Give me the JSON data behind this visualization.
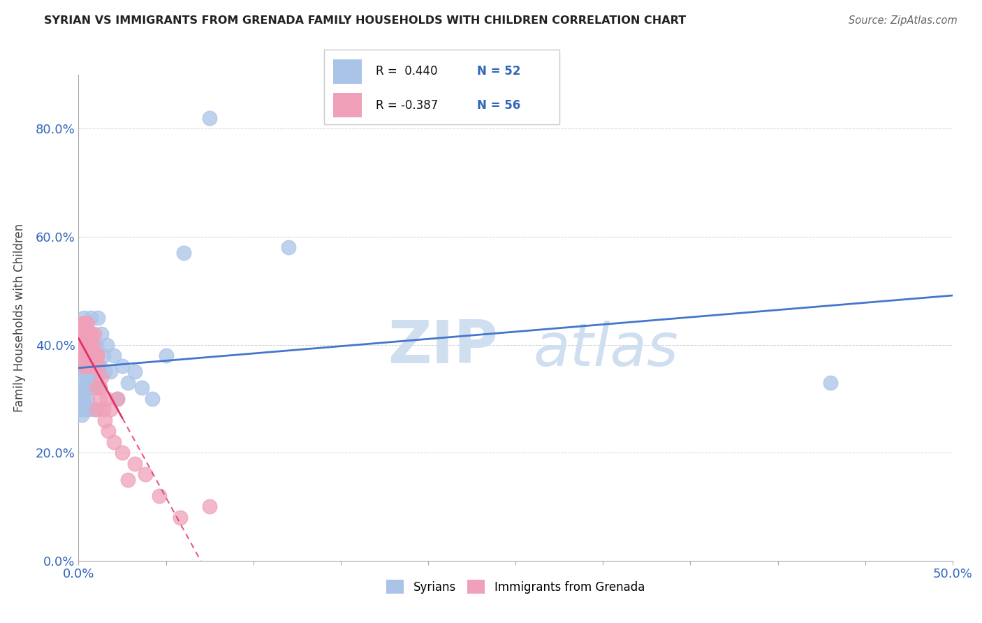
{
  "title": "SYRIAN VS IMMIGRANTS FROM GRENADA FAMILY HOUSEHOLDS WITH CHILDREN CORRELATION CHART",
  "source": "Source: ZipAtlas.com",
  "ylabel": "Family Households with Children",
  "xlim": [
    0.0,
    0.5
  ],
  "ylim": [
    0.0,
    0.9
  ],
  "blue_R": 0.44,
  "blue_N": 52,
  "pink_R": -0.387,
  "pink_N": 56,
  "blue_color": "#aac4e8",
  "pink_color": "#f0a0b8",
  "blue_line_color": "#4477cc",
  "pink_line_color": "#dd3366",
  "watermark_zip": "ZIP",
  "watermark_atlas": "atlas",
  "watermark_color": "#d0dff0",
  "legend_label_blue": "Syrians",
  "legend_label_pink": "Immigrants from Grenada",
  "blue_x": [
    0.001,
    0.001,
    0.002,
    0.002,
    0.002,
    0.003,
    0.003,
    0.003,
    0.003,
    0.003,
    0.004,
    0.004,
    0.004,
    0.004,
    0.004,
    0.005,
    0.005,
    0.005,
    0.005,
    0.006,
    0.006,
    0.006,
    0.006,
    0.007,
    0.007,
    0.007,
    0.008,
    0.008,
    0.009,
    0.009,
    0.01,
    0.01,
    0.011,
    0.012,
    0.012,
    0.013,
    0.014,
    0.015,
    0.016,
    0.018,
    0.02,
    0.022,
    0.025,
    0.028,
    0.032,
    0.036,
    0.042,
    0.05,
    0.06,
    0.075,
    0.12,
    0.43
  ],
  "blue_y": [
    0.28,
    0.3,
    0.32,
    0.27,
    0.35,
    0.3,
    0.28,
    0.33,
    0.31,
    0.45,
    0.29,
    0.35,
    0.32,
    0.28,
    0.35,
    0.38,
    0.3,
    0.35,
    0.34,
    0.42,
    0.36,
    0.28,
    0.33,
    0.45,
    0.38,
    0.4,
    0.35,
    0.32,
    0.38,
    0.28,
    0.4,
    0.34,
    0.45,
    0.36,
    0.32,
    0.42,
    0.38,
    0.35,
    0.4,
    0.35,
    0.38,
    0.3,
    0.36,
    0.33,
    0.35,
    0.32,
    0.3,
    0.38,
    0.57,
    0.82,
    0.58,
    0.33
  ],
  "pink_x": [
    0.001,
    0.001,
    0.001,
    0.002,
    0.002,
    0.002,
    0.002,
    0.003,
    0.003,
    0.003,
    0.003,
    0.003,
    0.004,
    0.004,
    0.004,
    0.004,
    0.004,
    0.005,
    0.005,
    0.005,
    0.005,
    0.005,
    0.006,
    0.006,
    0.006,
    0.007,
    0.007,
    0.007,
    0.008,
    0.008,
    0.008,
    0.009,
    0.009,
    0.009,
    0.01,
    0.01,
    0.01,
    0.011,
    0.011,
    0.012,
    0.012,
    0.013,
    0.014,
    0.015,
    0.016,
    0.017,
    0.018,
    0.02,
    0.022,
    0.025,
    0.028,
    0.032,
    0.038,
    0.046,
    0.058,
    0.075
  ],
  "pink_y": [
    0.4,
    0.38,
    0.42,
    0.44,
    0.4,
    0.38,
    0.42,
    0.44,
    0.4,
    0.38,
    0.42,
    0.36,
    0.4,
    0.44,
    0.38,
    0.42,
    0.36,
    0.4,
    0.38,
    0.42,
    0.44,
    0.36,
    0.38,
    0.42,
    0.4,
    0.38,
    0.42,
    0.4,
    0.36,
    0.38,
    0.4,
    0.38,
    0.42,
    0.36,
    0.28,
    0.38,
    0.32,
    0.36,
    0.38,
    0.32,
    0.3,
    0.34,
    0.28,
    0.26,
    0.3,
    0.24,
    0.28,
    0.22,
    0.3,
    0.2,
    0.15,
    0.18,
    0.16,
    0.12,
    0.08,
    0.1
  ]
}
